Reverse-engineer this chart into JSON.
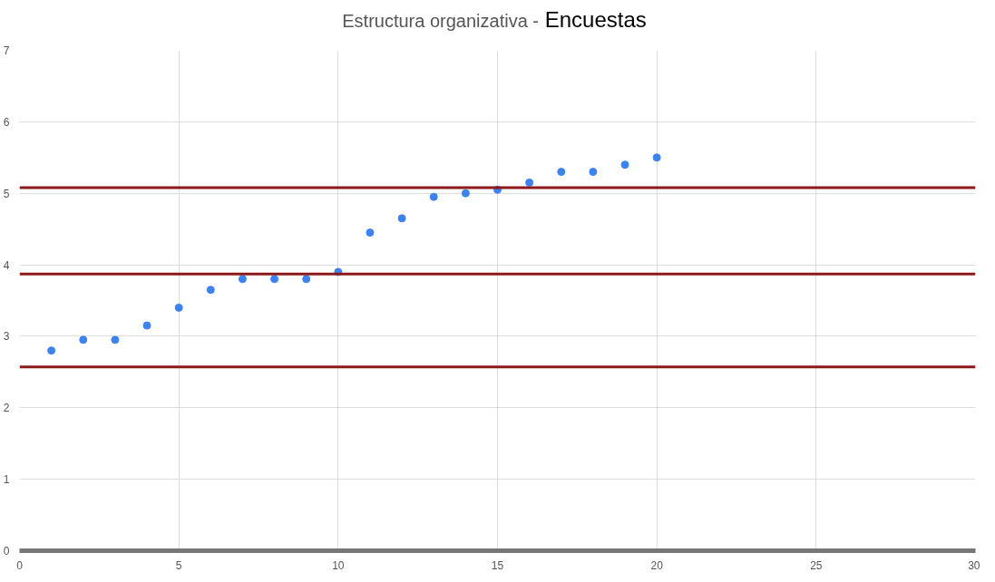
{
  "chart_data": {
    "type": "scatter",
    "title": "Estructura organizativa -",
    "subtitle": "Encuestas",
    "x": [
      1,
      2,
      3,
      4,
      5,
      6,
      7,
      8,
      9,
      10,
      11,
      12,
      13,
      14,
      15,
      16,
      17,
      18,
      19,
      20
    ],
    "series": [
      {
        "color": "#3b82f6",
        "values": [
          2.8,
          2.95,
          2.95,
          3.15,
          3.4,
          3.65,
          3.8,
          3.8,
          3.8,
          3.9,
          4.45,
          4.65,
          4.95,
          5.0,
          5.05,
          5.15,
          5.3,
          5.3,
          5.4,
          5.5
        ]
      }
    ],
    "xlim": [
      0,
      30
    ],
    "xticks": [
      0,
      5,
      10,
      15,
      20,
      25,
      30
    ],
    "ylim": [
      0,
      7
    ],
    "yticks": [
      0,
      1,
      2,
      3,
      4,
      5,
      6,
      7
    ],
    "ref_lines": [
      {
        "axis": "y",
        "value": 5.08,
        "color": "#8b1a1a"
      },
      {
        "axis": "y",
        "value": 3.87,
        "color": "#8b1a1a"
      },
      {
        "axis": "y",
        "value": 2.57,
        "color": "#8b1a1a"
      }
    ],
    "grid": true,
    "marker": "circle"
  }
}
